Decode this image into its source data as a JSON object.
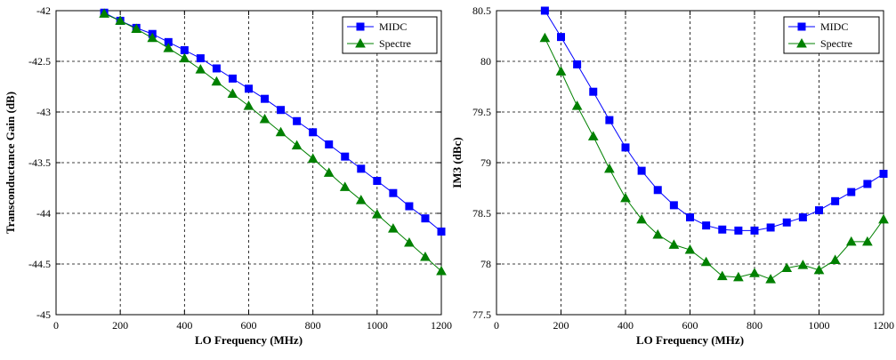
{
  "chart_data": [
    {
      "type": "line",
      "title": "",
      "xlabel": "LO Frequency (MHz)",
      "ylabel": "Transconductance Gain (dB)",
      "xlim": [
        0,
        1200
      ],
      "ylim": [
        -45,
        -42
      ],
      "xticks": [
        0,
        200,
        400,
        600,
        800,
        1000,
        1200
      ],
      "yticks": [
        -45,
        -44.5,
        -44,
        -43.5,
        -43,
        -42.5,
        -42
      ],
      "grid": true,
      "legend_position": "top-right",
      "x": [
        150,
        200,
        250,
        300,
        350,
        400,
        450,
        500,
        550,
        600,
        650,
        700,
        750,
        800,
        850,
        900,
        950,
        1000,
        1050,
        1100,
        1150,
        1200
      ],
      "series": [
        {
          "name": "MIDC",
          "color": "#0000ff",
          "marker": "square",
          "values": [
            -42.02,
            -42.1,
            -42.17,
            -42.23,
            -42.31,
            -42.39,
            -42.47,
            -42.57,
            -42.67,
            -42.77,
            -42.87,
            -42.98,
            -43.09,
            -43.2,
            -43.32,
            -43.44,
            -43.56,
            -43.68,
            -43.8,
            -43.93,
            -44.05,
            -44.18
          ]
        },
        {
          "name": "Spectre",
          "color": "#008000",
          "marker": "triangle",
          "values": [
            -42.03,
            -42.1,
            -42.18,
            -42.27,
            -42.37,
            -42.47,
            -42.58,
            -42.7,
            -42.82,
            -42.94,
            -43.07,
            -43.2,
            -43.33,
            -43.46,
            -43.6,
            -43.74,
            -43.87,
            -44.01,
            -44.15,
            -44.29,
            -44.43,
            -44.57
          ]
        }
      ]
    },
    {
      "type": "line",
      "title": "",
      "xlabel": "LO Frequency (MHz)",
      "ylabel": "IM3 (dBc)",
      "xlim": [
        0,
        1200
      ],
      "ylim": [
        77.5,
        80.5
      ],
      "xticks": [
        0,
        200,
        400,
        600,
        800,
        1000,
        1200
      ],
      "yticks": [
        77.5,
        78,
        78.5,
        79,
        79.5,
        80,
        80.5
      ],
      "grid": true,
      "legend_position": "top-right",
      "x": [
        150,
        200,
        250,
        300,
        350,
        400,
        450,
        500,
        550,
        600,
        650,
        700,
        750,
        800,
        850,
        900,
        950,
        1000,
        1050,
        1100,
        1150,
        1200
      ],
      "series": [
        {
          "name": "MIDC",
          "color": "#0000ff",
          "marker": "square",
          "values": [
            80.5,
            80.24,
            79.97,
            79.7,
            79.42,
            79.15,
            78.92,
            78.73,
            78.58,
            78.46,
            78.38,
            78.34,
            78.33,
            78.33,
            78.36,
            78.41,
            78.46,
            78.53,
            78.62,
            78.71,
            78.79,
            78.89
          ]
        },
        {
          "name": "Spectre",
          "color": "#008000",
          "marker": "triangle",
          "values": [
            80.23,
            79.9,
            79.56,
            79.26,
            78.94,
            78.65,
            78.44,
            78.29,
            78.19,
            78.14,
            78.02,
            77.88,
            77.87,
            77.91,
            77.85,
            77.96,
            77.99,
            77.94,
            78.04,
            78.22,
            78.22,
            78.44
          ]
        }
      ]
    }
  ]
}
